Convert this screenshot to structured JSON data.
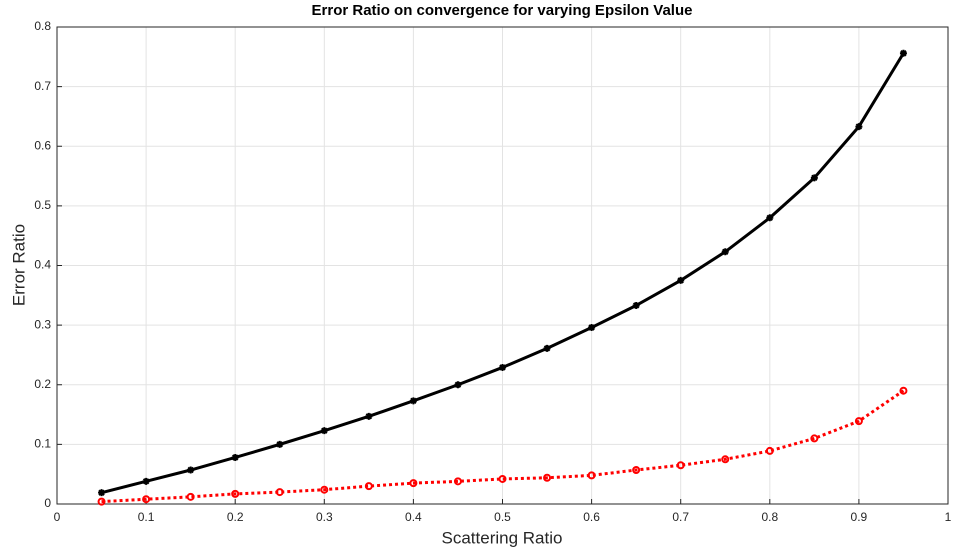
{
  "chart_data": {
    "type": "line",
    "title": "Error Ratio on convergence for varying Epsilon Value",
    "x_label": "Scattering Ratio",
    "y_label": "Error Ratio",
    "x": [
      0.05,
      0.1,
      0.15,
      0.2,
      0.25,
      0.3,
      0.35,
      0.4,
      0.45,
      0.5,
      0.55,
      0.6,
      0.65,
      0.7,
      0.75,
      0.8,
      0.85,
      0.9,
      0.95
    ],
    "series": [
      {
        "color": "#000000",
        "linestyle": "solid",
        "marker": "asterisk",
        "values": [
          0.019,
          0.038,
          0.057,
          0.078,
          0.1,
          0.123,
          0.147,
          0.173,
          0.2,
          0.229,
          0.261,
          0.296,
          0.333,
          0.375,
          0.423,
          0.48,
          0.547,
          0.633,
          0.756
        ]
      },
      {
        "color": "#ff0000",
        "linestyle": "dotted",
        "marker": "circle",
        "values": [
          0.004,
          0.008,
          0.012,
          0.017,
          0.02,
          0.024,
          0.03,
          0.035,
          0.038,
          0.042,
          0.044,
          0.048,
          0.057,
          0.065,
          0.075,
          0.089,
          0.11,
          0.139,
          0.19
        ]
      }
    ],
    "xlim": [
      0,
      1
    ],
    "xticks": [
      0,
      0.1,
      0.2,
      0.3,
      0.4,
      0.5,
      0.6,
      0.7,
      0.8,
      0.9,
      1
    ],
    "ylim": [
      0,
      0.8
    ],
    "yticks": [
      0,
      0.1,
      0.2,
      0.3,
      0.4,
      0.5,
      0.6,
      0.7,
      0.8
    ],
    "grid": true
  }
}
